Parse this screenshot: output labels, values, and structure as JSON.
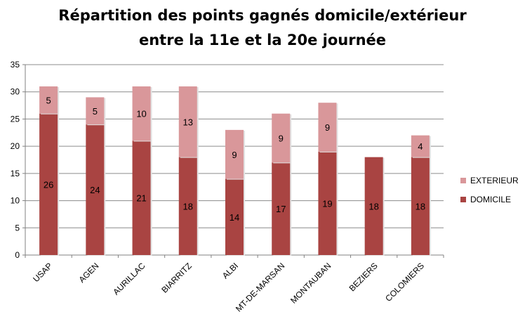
{
  "chart_data": {
    "type": "bar",
    "stacked": true,
    "title": "Répartition des points gagnés domicile/extérieur",
    "subtitle": "entre la 11e et la 20e journée",
    "categories": [
      "USAP",
      "AGEN",
      "AURILLAC",
      "BIARRITZ",
      "ALBI",
      "MT-DE-MARSAN",
      "MONTAUBAN",
      "BEZIERS",
      "COLOMIERS"
    ],
    "series": [
      {
        "name": "DOMICILE",
        "color": "#a94442",
        "values": [
          26,
          24,
          21,
          18,
          14,
          17,
          19,
          18,
          18
        ],
        "labels": [
          "26",
          "24",
          "21",
          "18",
          "14",
          "17",
          "19",
          "18",
          "18"
        ]
      },
      {
        "name": "EXTERIEUR",
        "color": "#d9979a",
        "values": [
          5,
          5,
          10,
          13,
          9,
          9,
          9,
          0,
          4
        ],
        "labels": [
          "5",
          "5",
          "10",
          "13",
          "9",
          "9",
          "9",
          "",
          "4"
        ]
      }
    ],
    "yticks": [
      "0",
      "5",
      "10",
      "15",
      "20",
      "25",
      "30",
      "35"
    ],
    "ylim": [
      0,
      35
    ],
    "grid": true,
    "legend_position": "right"
  }
}
